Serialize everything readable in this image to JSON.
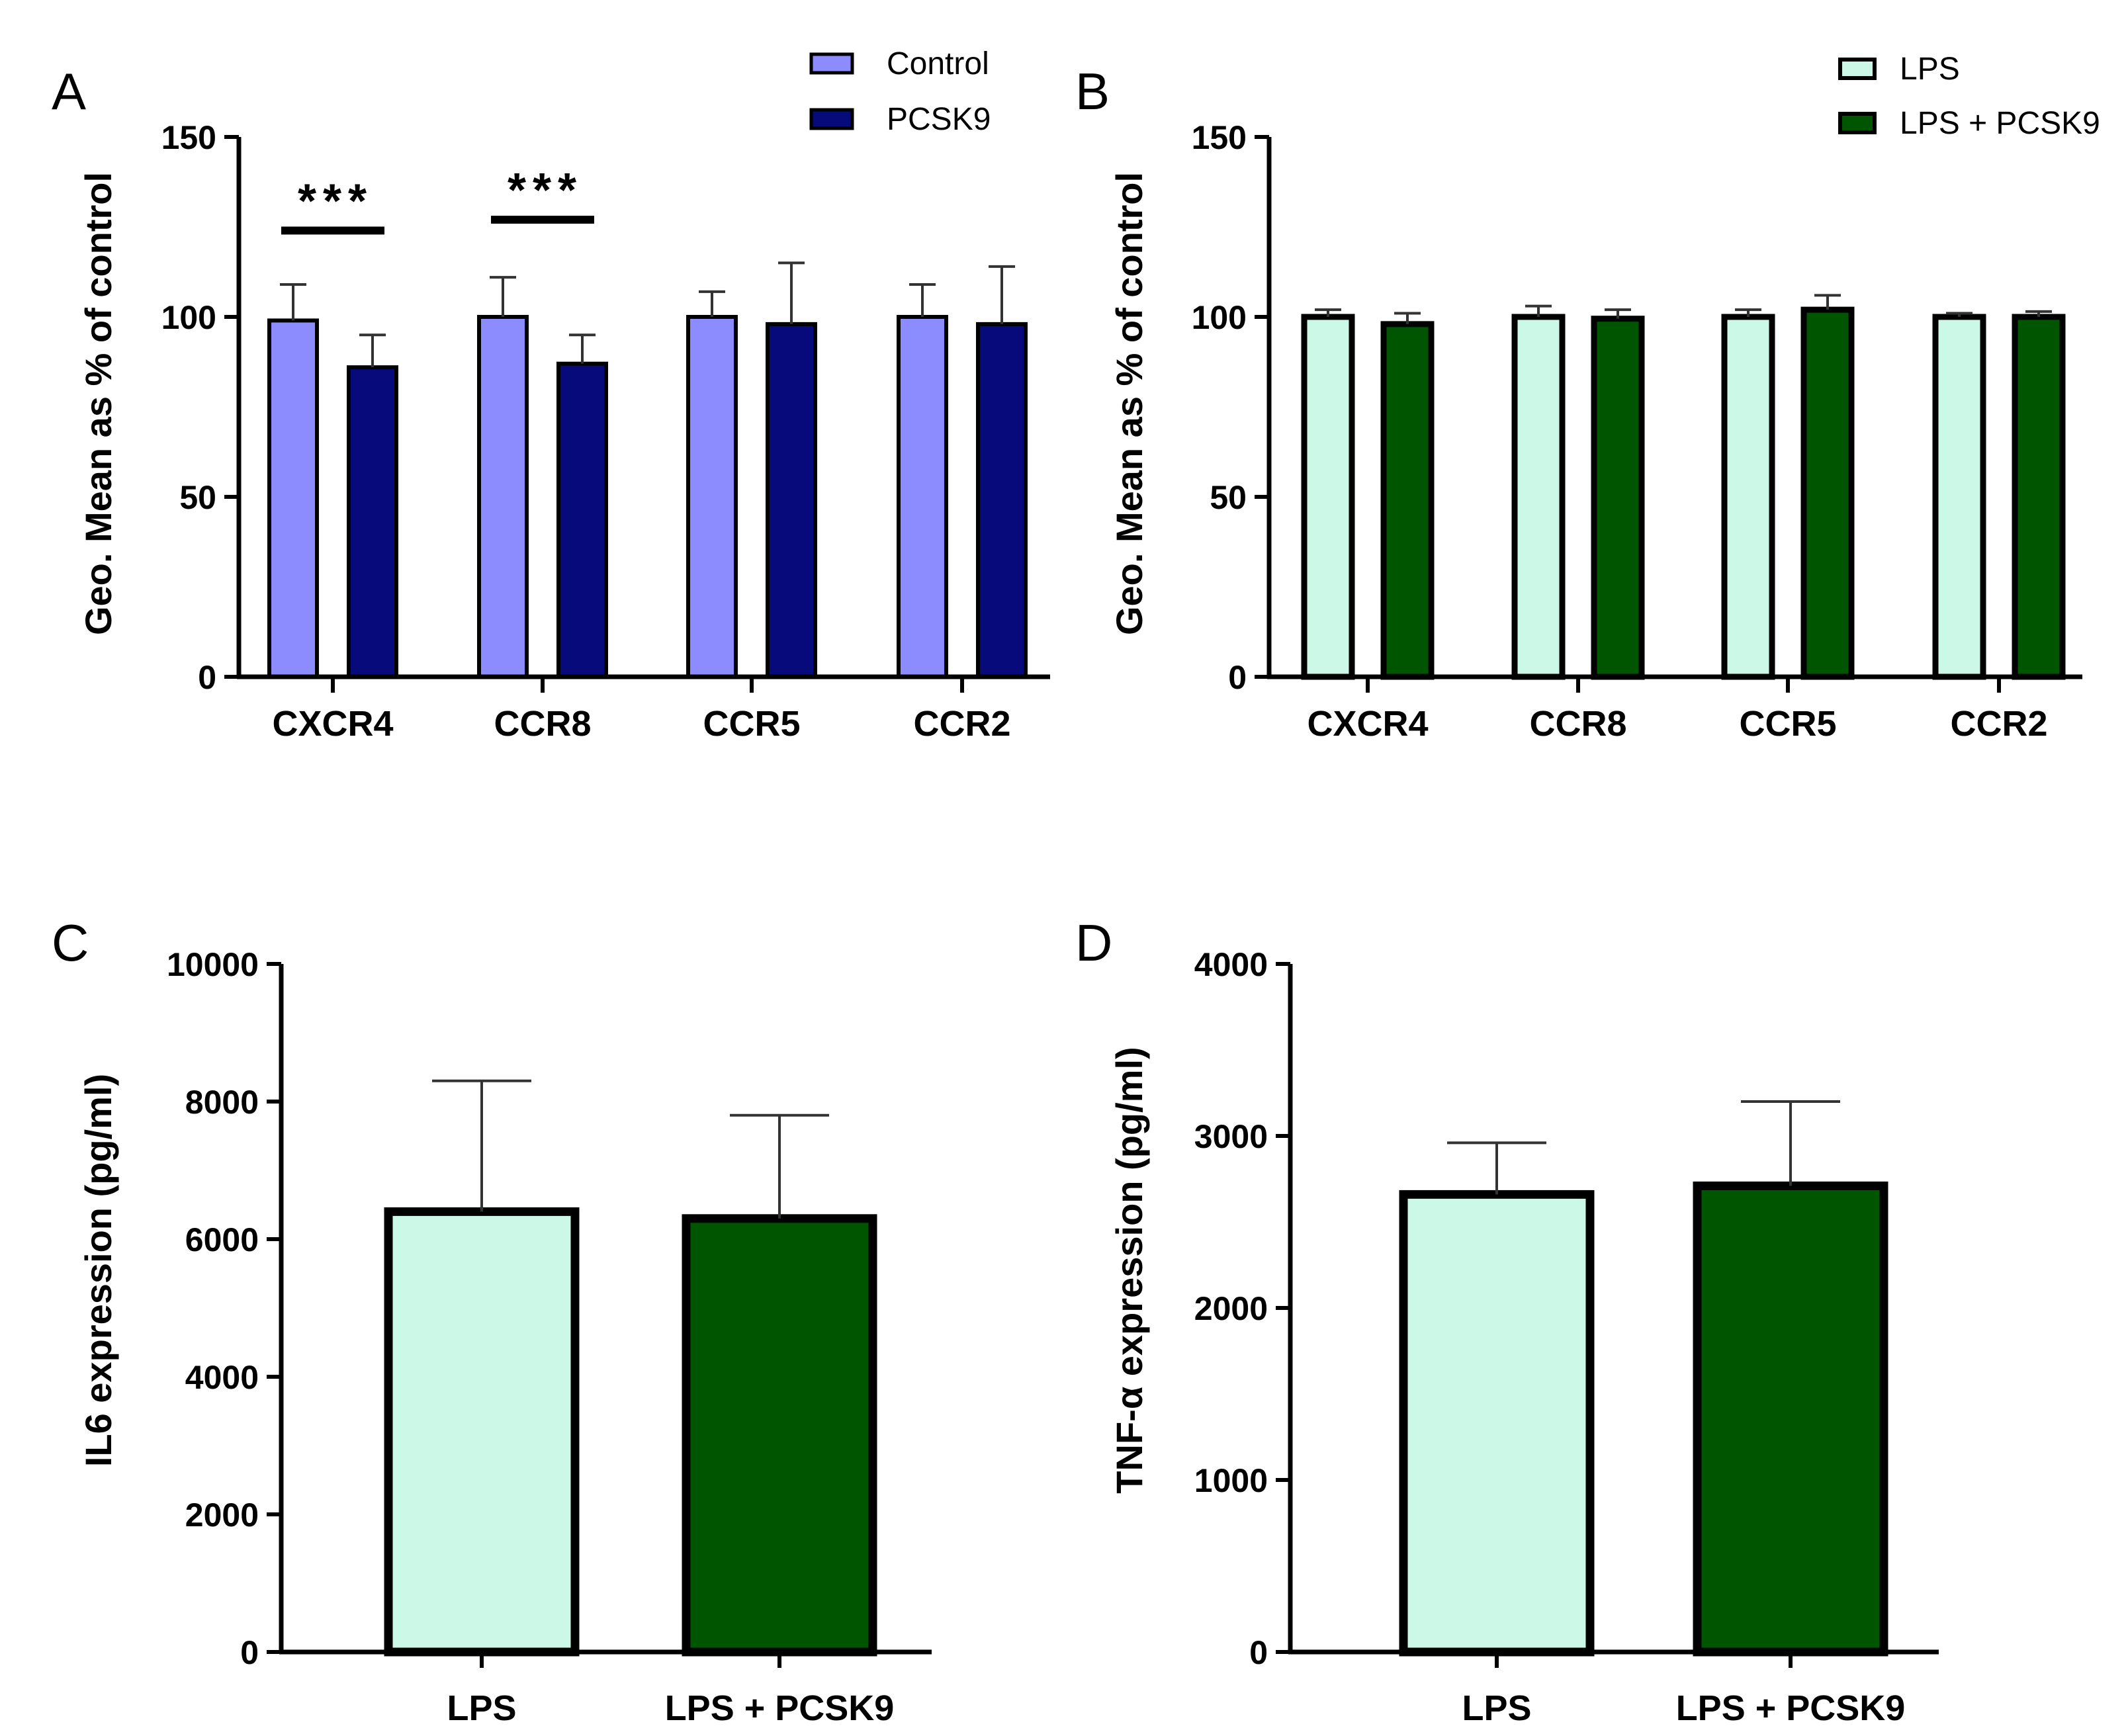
{
  "colors": {
    "control": "#8C8CFF",
    "pcsk9": "#060A7A",
    "lps": "#CCF8E7",
    "lps_pcsk9": "#005500"
  },
  "chart_data": [
    {
      "panel": "A",
      "type": "bar",
      "ylabel": "Geo. Mean as % of control",
      "ylim": [
        0,
        150
      ],
      "yticks": [
        "0",
        "50",
        "100",
        "150"
      ],
      "categories": [
        "CXCR4",
        "CCR8",
        "CCR5",
        "CCR2"
      ],
      "legend": [
        "Control",
        "PCSK9"
      ],
      "legend_position": "top-right",
      "series": [
        {
          "name": "Control",
          "color_key": "control",
          "values": [
            99,
            100,
            100,
            100
          ],
          "errors": [
            10,
            11,
            7,
            9
          ]
        },
        {
          "name": "PCSK9",
          "color_key": "pcsk9",
          "values": [
            86,
            87,
            98,
            98
          ],
          "errors": [
            9,
            8,
            17,
            16
          ]
        }
      ],
      "annotations": [
        {
          "category": "CXCR4",
          "text": "***",
          "level": 124
        },
        {
          "category": "CCR8",
          "text": "***",
          "level": 127
        }
      ]
    },
    {
      "panel": "B",
      "type": "bar",
      "ylabel": "Geo. Mean as % of control",
      "ylim": [
        0,
        150
      ],
      "yticks": [
        "0",
        "50",
        "100",
        "150"
      ],
      "categories": [
        "CXCR4",
        "CCR8",
        "CCR5",
        "CCR2"
      ],
      "legend": [
        "LPS",
        "LPS + PCSK9"
      ],
      "legend_position": "top-right",
      "series": [
        {
          "name": "LPS",
          "color_key": "lps",
          "values": [
            100,
            100,
            100,
            100
          ],
          "errors": [
            2,
            3,
            2,
            1
          ]
        },
        {
          "name": "LPS + PCSK9",
          "color_key": "lps_pcsk9",
          "values": [
            98,
            99.5,
            102,
            100
          ],
          "errors": [
            3,
            2.5,
            4,
            1.5
          ]
        }
      ],
      "annotations": []
    },
    {
      "panel": "C",
      "type": "bar",
      "ylabel": "IL6 expression (pg/ml)",
      "ylim": [
        0,
        10000
      ],
      "yticks": [
        "0",
        "2000",
        "4000",
        "6000",
        "8000",
        "10000"
      ],
      "categories": [
        "LPS",
        "LPS + PCSK9"
      ],
      "series": [
        {
          "name": "IL6",
          "values": [
            6400,
            6300
          ],
          "errors": [
            1900,
            1500
          ],
          "color_keys": [
            "lps",
            "lps_pcsk9"
          ]
        }
      ]
    },
    {
      "panel": "D",
      "type": "bar",
      "ylabel": "TNF-α expression (pg/ml)",
      "ylim": [
        0,
        4000
      ],
      "yticks": [
        "0",
        "1000",
        "2000",
        "3000",
        "4000"
      ],
      "categories": [
        "LPS",
        "LPS + PCSK9"
      ],
      "series": [
        {
          "name": "TNF-α",
          "values": [
            2660,
            2710
          ],
          "errors": [
            300,
            490
          ],
          "color_keys": [
            "lps",
            "lps_pcsk9"
          ]
        }
      ]
    }
  ]
}
